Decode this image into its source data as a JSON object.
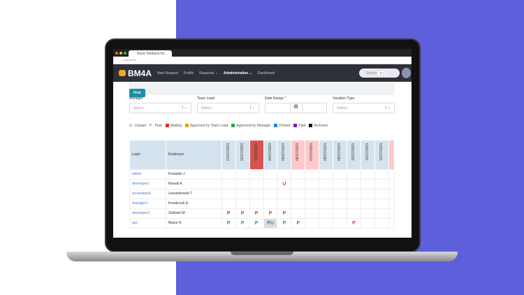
{
  "browser": {
    "tab_title": "Basic Modules for...",
    "url": "bm4a.com"
  },
  "nav": {
    "logo": "BM4A",
    "items": [
      {
        "label": "New Request"
      },
      {
        "label": "Profile"
      },
      {
        "label": "Requests ⌄"
      },
      {
        "label": "Administration ⌄",
        "active": true
      },
      {
        "label": "Dashboard"
      }
    ],
    "search_placeholder": "Search",
    "search_shortcut": "⌘ K"
  },
  "filters": {
    "find_label": "Find",
    "manager": {
      "label": "Manager",
      "placeholder": "Select..."
    },
    "team_lead": {
      "label": "Team Lead",
      "placeholder": "Select..."
    },
    "date_range": {
      "label": "Date Range *"
    },
    "vacation_type": {
      "label": "Vacation Type",
      "placeholder": "Select..."
    }
  },
  "legend": {
    "unpaid": "U - Unpaid",
    "paid": "P - Paid",
    "statuses": [
      {
        "label": "Waiting",
        "color": "#d32f2f"
      },
      {
        "label": "Approved by Team Lead",
        "color": "#e0a800"
      },
      {
        "label": "Approved by Manager",
        "color": "#28a745"
      },
      {
        "label": "Printed",
        "color": "#1e88e5"
      },
      {
        "label": "Paid",
        "color": "#7b1fa2"
      },
      {
        "label": "Archived",
        "color": "#111111"
      }
    ]
  },
  "table": {
    "headers": {
      "login": "Login",
      "employee": "Employee"
    },
    "dates": [
      {
        "label": "01/07/2024"
      },
      {
        "label": "02/07/2024"
      },
      {
        "label": "03/07/2024",
        "highlight": "today"
      },
      {
        "label": "04/07/2024"
      },
      {
        "label": "05/07/2024"
      },
      {
        "label": "06/07/2024",
        "highlight": "weekend"
      },
      {
        "label": "07/07/2024",
        "highlight": "weekend"
      },
      {
        "label": "08/07/2024"
      },
      {
        "label": "09/07/2024"
      },
      {
        "label": "10/07/2024"
      },
      {
        "label": "11/07/2024"
      },
      {
        "label": "12/07/2024"
      },
      {
        "label": "",
        "highlight": "weekend"
      }
    ],
    "rows": [
      {
        "login": "admin",
        "employee": "Kowalski J.",
        "cells": {}
      },
      {
        "login": "developer1",
        "employee": "Nowak A.",
        "cells": {
          "4": [
            {
              "t": "U",
              "c": "#e53935"
            }
          ]
        }
      },
      {
        "login": "accountant1",
        "employee": "Lewandowski T.",
        "cells": {}
      },
      {
        "login": "manager1",
        "employee": "Kowalczyk E.",
        "cells": {}
      },
      {
        "login": "developer3",
        "employee": "Zieliński M.",
        "cells": {
          "0": [
            {
              "t": "P",
              "c": "#e53935"
            }
          ],
          "1": [
            {
              "t": "P",
              "c": "#e53935"
            }
          ],
          "2": [
            {
              "t": "P",
              "c": "#e53935"
            }
          ],
          "3": [
            {
              "t": "P",
              "c": "#e53935"
            }
          ],
          "4": [
            {
              "t": "P",
              "c": "#e53935"
            }
          ]
        }
      },
      {
        "login": "qa1",
        "employee": "Mazur A.",
        "cells": {
          "0": [
            {
              "t": "P",
              "c": "#1e88e5"
            }
          ],
          "1": [
            {
              "t": "P",
              "c": "#1e88e5"
            }
          ],
          "2": [
            {
              "t": "P",
              "c": "#1e88e5"
            }
          ],
          "3": [
            {
              "t": "P",
              "c": "#1e88e5"
            },
            {
              "t": "U",
              "c": "#28a745"
            }
          ],
          "4": [
            {
              "t": "P",
              "c": "#1e88e5"
            }
          ],
          "5": [
            {
              "t": "P",
              "c": "#1e88e5"
            }
          ],
          "9": [
            {
              "t": "P",
              "c": "#e53935"
            }
          ]
        }
      }
    ]
  }
}
